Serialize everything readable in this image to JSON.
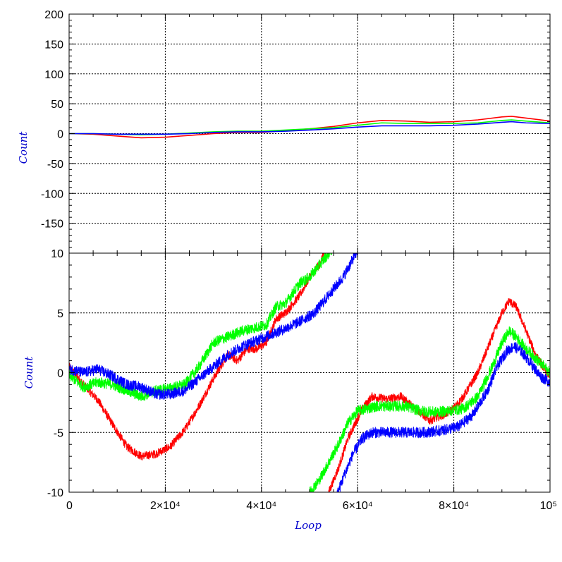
{
  "colors": {
    "series1": "#ff0000",
    "series2": "#00ff00",
    "series3": "#0000ff",
    "grid": "#000000"
  },
  "chart_data": [
    {
      "type": "line",
      "panel": "top",
      "xlim": [
        0,
        100000
      ],
      "ylim": [
        -200,
        200
      ],
      "ylabel": "Count",
      "xlabel": "",
      "grid": true,
      "y_tick_values": [
        200,
        150,
        100,
        50,
        0,
        -50,
        -100,
        -150
      ],
      "y_tick_labels": [
        "200",
        "150",
        "100",
        "50",
        "0",
        "-50",
        "-100",
        "-150"
      ],
      "x": [
        0,
        5000,
        10000,
        15000,
        20000,
        25000,
        30000,
        35000,
        40000,
        45000,
        50000,
        55000,
        60000,
        65000,
        70000,
        75000,
        80000,
        85000,
        90000,
        92000,
        95000,
        100000
      ],
      "series": [
        {
          "color": "#ff0000",
          "values": [
            0,
            -1,
            -4,
            -7,
            -6,
            -3,
            0,
            2,
            2,
            5,
            8,
            12,
            18,
            22,
            21,
            19,
            20,
            23,
            28,
            29,
            26,
            21
          ]
        },
        {
          "color": "#00ff00",
          "values": [
            0,
            0,
            -1,
            -2,
            -1,
            1,
            3,
            4,
            4,
            6,
            8,
            10,
            14,
            18,
            17,
            17,
            17,
            18,
            22,
            23,
            21,
            18
          ]
        },
        {
          "color": "#0000ff",
          "values": [
            0,
            0,
            -1,
            -1,
            -1,
            0,
            2,
            3,
            3,
            4,
            6,
            8,
            11,
            13,
            13,
            13,
            14,
            16,
            19,
            20,
            18,
            17
          ]
        }
      ]
    },
    {
      "type": "line",
      "panel": "bottom",
      "xlim": [
        0,
        100000
      ],
      "ylim": [
        -10,
        10
      ],
      "ylabel": "Count",
      "xlabel": "Loop",
      "grid": true,
      "y_tick_values": [
        10,
        5,
        0,
        -5,
        -10
      ],
      "y_tick_labels": [
        "10",
        "5",
        "0",
        "-5",
        "-10"
      ],
      "x_tick_values": [
        0,
        20000,
        40000,
        60000,
        80000,
        100000
      ],
      "x_tick_labels": [
        "0",
        "2×10⁴",
        "4×10⁴",
        "6×10⁴",
        "8×10⁴",
        "10⁵"
      ],
      "series": [
        {
          "color": "#ff0000",
          "segments": [
            {
              "x": [
                0,
                3000,
                6000,
                9000,
                12000,
                15000,
                18000,
                21000,
                24000,
                27000,
                30000,
                33000,
                35000,
                37000,
                39000,
                41000,
                43000,
                45000,
                48000,
                50000,
                52000,
                54000
              ],
              "y": [
                0.5,
                -1.0,
                -2.3,
                -4.3,
                -6.2,
                -7.0,
                -6.8,
                -6.2,
                -4.8,
                -2.8,
                -0.5,
                1.5,
                1.0,
                2.0,
                2.0,
                2.5,
                4.5,
                5.0,
                6.5,
                8.0,
                9.0,
                11.0
              ]
            },
            {
              "x": [
                53000,
                56000,
                58000,
                61000,
                63000,
                66000,
                69000,
                72000,
                75000,
                78000,
                80000,
                82000,
                85000,
                88000,
                90000,
                91500,
                93000,
                95000,
                97000,
                99000,
                100000
              ],
              "y": [
                -11.0,
                -8.0,
                -5.5,
                -3.0,
                -2.0,
                -2.2,
                -2.0,
                -3.0,
                -4.0,
                -3.5,
                -3.0,
                -2.0,
                0.0,
                3.0,
                5.0,
                6.0,
                5.5,
                3.5,
                1.5,
                0.2,
                -0.3
              ]
            }
          ]
        },
        {
          "color": "#00ff00",
          "segments": [
            {
              "x": [
                0,
                3000,
                6000,
                9000,
                12000,
                15000,
                18000,
                21000,
                24000,
                27000,
                30000,
                33000,
                36000,
                39000,
                41000,
                43000,
                45000,
                48000,
                50000,
                52000,
                56000
              ],
              "y": [
                -0.2,
                -1.2,
                -0.8,
                -1.0,
                -1.5,
                -2.0,
                -1.5,
                -1.3,
                -1.0,
                0.5,
                2.5,
                3.0,
                3.5,
                3.8,
                4.0,
                5.5,
                5.8,
                7.5,
                8.0,
                9.0,
                11.0
              ]
            },
            {
              "x": [
                50000,
                52000,
                54000,
                56000,
                58000,
                60000,
                62000,
                64000,
                67000,
                70000,
                73000,
                76000,
                79000,
                82000,
                85000,
                88000,
                90000,
                91500,
                93000,
                95000,
                97000,
                100000
              ],
              "y": [
                -10.0,
                -9.0,
                -7.5,
                -6.0,
                -4.2,
                -3.2,
                -3.0,
                -2.8,
                -2.8,
                -2.8,
                -3.2,
                -3.3,
                -3.2,
                -3.0,
                -2.0,
                0.5,
                2.5,
                3.5,
                3.0,
                2.0,
                1.2,
                0.0
              ]
            }
          ]
        },
        {
          "color": "#0000ff",
          "segments": [
            {
              "x": [
                0,
                3000,
                6000,
                9000,
                12000,
                15000,
                18000,
                21000,
                24000,
                27000,
                30000,
                33000,
                36000,
                39000,
                42000,
                45000,
                48000,
                51000,
                54000,
                57000,
                59000,
                61000
              ],
              "y": [
                0.3,
                0.0,
                0.3,
                -0.3,
                -1.0,
                -1.2,
                -1.8,
                -1.8,
                -1.5,
                -0.5,
                0.5,
                1.5,
                2.2,
                2.7,
                3.2,
                3.7,
                4.3,
                5.0,
                6.5,
                8.0,
                9.5,
                11.0
              ]
            },
            {
              "x": [
                55000,
                57000,
                59000,
                61000,
                63000,
                66000,
                70000,
                74000,
                78000,
                81000,
                84000,
                87000,
                89000,
                91000,
                92500,
                94000,
                96000,
                98000,
                100000
              ],
              "y": [
                -11.0,
                -8.8,
                -6.8,
                -5.5,
                -5.0,
                -5.0,
                -5.0,
                -5.0,
                -4.8,
                -4.5,
                -3.5,
                -1.5,
                0.5,
                1.8,
                2.2,
                1.8,
                0.8,
                -0.3,
                -0.8
              ]
            }
          ]
        }
      ]
    }
  ]
}
